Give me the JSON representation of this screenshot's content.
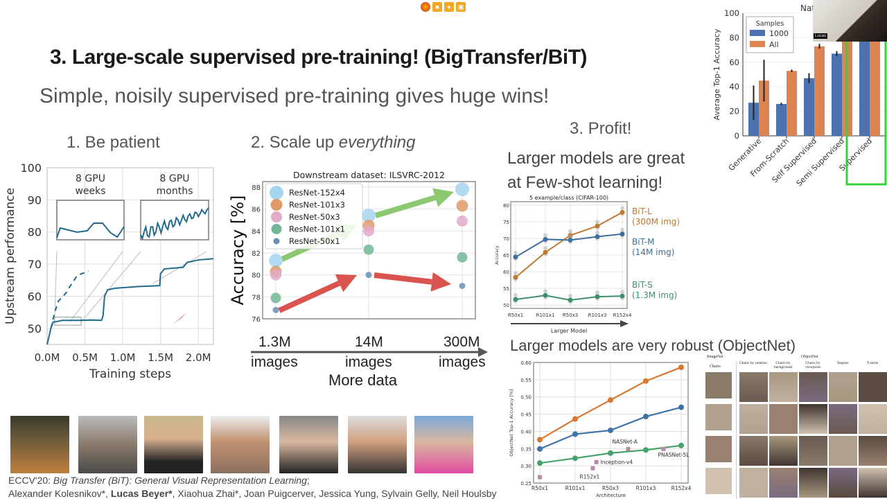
{
  "slide": {
    "title": "3. Large-scale supervised pre-training! (BigTransfer/BiT)",
    "subtitle": "Simple, noisily supervised pre-training gives huge wins!",
    "section1": "1. Be patient",
    "section2_prefix": "2. Scale up ",
    "section2_em": "everything",
    "section3": "3. Profit!",
    "fewshot_line1": "Larger models are great",
    "fewshot_line2": "at Few-shot learning!",
    "robust": "Larger models are very robust (ObjectNet)",
    "data_labels": [
      {
        "amount": "1.3M",
        "unit": "images"
      },
      {
        "amount": "14M",
        "unit": "images"
      },
      {
        "amount": "300M",
        "unit": "images"
      }
    ],
    "more_data": "More data",
    "citation_venue": "ECCV'20: ",
    "citation_title": "Big Transfer (BiT): General Visual Representation Learning",
    "citation_sep": ";",
    "authors_a": "Alexander Kolesnikov*, ",
    "authors_b": "Lucas Beyer*",
    "authors_c": ", Xiaohua Zhai*, Joan Puigcerver, Jessica Yung, Sylvain Gelly, Neil Houlsby",
    "webcam_name": "Lucas",
    "objectnet_grid": {
      "left_header": "ImageNet",
      "left_sub": "Chairs",
      "right_header": "ObjectNet",
      "columns": [
        "Chairs by rotation",
        "Chairs by background",
        "Chairs by viewpoint",
        "Teapots",
        "T-shirts"
      ]
    }
  },
  "colors": {
    "accent_green": "#3ccf3c",
    "arrow_green": "#8cc870",
    "arrow_red": "#d9534f"
  },
  "chart_data": [
    {
      "id": "patience",
      "type": "line",
      "xlabel": "Training steps",
      "ylabel": "Upstream performance",
      "xticks": [
        "0.0M",
        "0.5M",
        "1.0M",
        "1.5M",
        "2.0M"
      ],
      "xtick_values": [
        0,
        0.5,
        1.0,
        1.5,
        2.0
      ],
      "yticks": [
        50,
        60,
        70,
        80,
        90,
        100
      ],
      "xlim": [
        0,
        2.2
      ],
      "ylim": [
        45,
        100
      ],
      "insets": [
        "8 GPU weeks",
        "8 GPU months"
      ],
      "series": [
        {
          "style": "solid",
          "x": [
            0,
            0.03,
            0.05,
            0.08,
            0.1,
            0.2,
            0.4,
            0.6,
            0.72,
            0.74,
            0.76,
            0.8,
            0.9,
            1.2,
            1.49,
            1.5,
            1.55,
            1.8,
            1.85,
            2.0,
            2.2
          ],
          "y": [
            45,
            48,
            50,
            52,
            52,
            52.5,
            52.5,
            52.6,
            52.5,
            54,
            60,
            62,
            62.5,
            63,
            63.3,
            67,
            68.5,
            69,
            70.5,
            71.3,
            71.7
          ]
        },
        {
          "style": "dashed",
          "x": [
            0.05,
            0.1,
            0.15,
            0.25,
            0.3,
            0.4,
            0.55
          ],
          "y": [
            50,
            55,
            58.5,
            61,
            63,
            66.5,
            67.8
          ]
        }
      ],
      "grid": true
    },
    {
      "id": "scale",
      "type": "scatter",
      "title": "Downstream dataset: ILSVRC-2012",
      "ylabel": "Accuracy [%]",
      "categories": [
        "1.3M",
        "14M",
        "300M"
      ],
      "yticks": [
        76,
        78,
        80,
        82,
        84,
        86,
        88
      ],
      "ylim": [
        76,
        88.5
      ],
      "legend": "top-left",
      "grid": true,
      "series": [
        {
          "name": "ResNet-152x4",
          "color": "#a6d5f0",
          "values": [
            81.3,
            85.4,
            87.8
          ]
        },
        {
          "name": "ResNet-101x3",
          "color": "#e09a6a",
          "values": [
            80.3,
            84.5,
            86.3
          ]
        },
        {
          "name": "ResNet-50x3",
          "color": "#e2aacb",
          "values": [
            80.0,
            84.0,
            84.9
          ]
        },
        {
          "name": "ResNet-101x1",
          "color": "#72b798",
          "values": [
            77.9,
            82.3,
            81.6
          ]
        },
        {
          "name": "ResNet-50x1",
          "color": "#6a8fb5",
          "values": [
            76.8,
            80.0,
            79.0
          ]
        }
      ]
    },
    {
      "id": "fewshot",
      "type": "line",
      "title": "5 example/class (CIFAR-100)",
      "ylabel": "Accuracy",
      "xlabel": "Larger Model",
      "categories": [
        "R50x1",
        "R101x1",
        "R50x3",
        "R101x3",
        "R152x4"
      ],
      "yticks": [
        50,
        55,
        60,
        65,
        70,
        75,
        80
      ],
      "ylim": [
        49,
        81
      ],
      "grid": true,
      "series": [
        {
          "name": "BiT-L",
          "sub": "(300M img)",
          "color": "#c0772e",
          "values": [
            58.3,
            65.8,
            70.9,
            73.7,
            77.8
          ]
        },
        {
          "name": "BiT-M",
          "sub": "(14M img)",
          "color": "#3d6f9e",
          "values": [
            64.4,
            69.7,
            69.5,
            70.5,
            71.3
          ]
        },
        {
          "name": "BiT-S",
          "sub": "(1.3M img)",
          "color": "#3d8f6a",
          "values": [
            51.7,
            52.9,
            51.5,
            52.5,
            52.7
          ]
        }
      ]
    },
    {
      "id": "objectnet",
      "type": "line",
      "ylabel": "ObjectNet Top-1 Accuracy [%]",
      "xlabel": "Architecture",
      "categories": [
        "R50x1",
        "R101x1",
        "R50x3",
        "R101x3",
        "R152x4"
      ],
      "yticks": [
        "0.25",
        "0.30",
        "0.35",
        "0.40",
        "0.45",
        "0.50",
        "0.55",
        "0.60"
      ],
      "ylim": [
        0.25,
        0.6
      ],
      "grid": true,
      "series": [
        {
          "color": "#d9772e",
          "values": [
            0.376,
            0.436,
            0.491,
            0.546,
            0.586
          ]
        },
        {
          "color": "#3d72a8",
          "values": [
            0.349,
            0.392,
            0.403,
            0.443,
            0.47
          ]
        },
        {
          "color": "#45a36a",
          "values": [
            0.308,
            0.322,
            0.337,
            0.346,
            0.359
          ]
        }
      ],
      "points": [
        {
          "label": "",
          "x": 0,
          "y": 0.267
        },
        {
          "label": "R152x1",
          "x": 1.5,
          "y": 0.293
        },
        {
          "label": "Inception-v4",
          "x": 1.6,
          "y": 0.311
        },
        {
          "label": "NASNet-A",
          "x": 2.5,
          "y": 0.349
        },
        {
          "label": "PNASNet-5L",
          "x": 3.5,
          "y": 0.349
        }
      ],
      "point_color": "#b98aa8"
    },
    {
      "id": "natural",
      "type": "bar",
      "title": "Nat",
      "ylabel": "Average Top-1 Accuracy",
      "categories": [
        "Generative",
        "From-Scratch",
        "Self Supervised",
        "Semi Supervised",
        "Supervised"
      ],
      "yticks": [
        0,
        20,
        40,
        60,
        80,
        100
      ],
      "ylim": [
        0,
        100
      ],
      "legend_title": "Samples",
      "legend": "top-left",
      "series": [
        {
          "name": "1000",
          "color": "#4c72b0",
          "values": [
            27,
            26,
            47,
            67,
            88
          ],
          "err": [
            14,
            1,
            4,
            2,
            0
          ]
        },
        {
          "name": "All",
          "color": "#dd8452",
          "values": [
            45,
            53,
            73,
            86,
            88
          ],
          "err": [
            17,
            1,
            2,
            0,
            0
          ]
        }
      ],
      "highlight": "Supervised"
    }
  ]
}
